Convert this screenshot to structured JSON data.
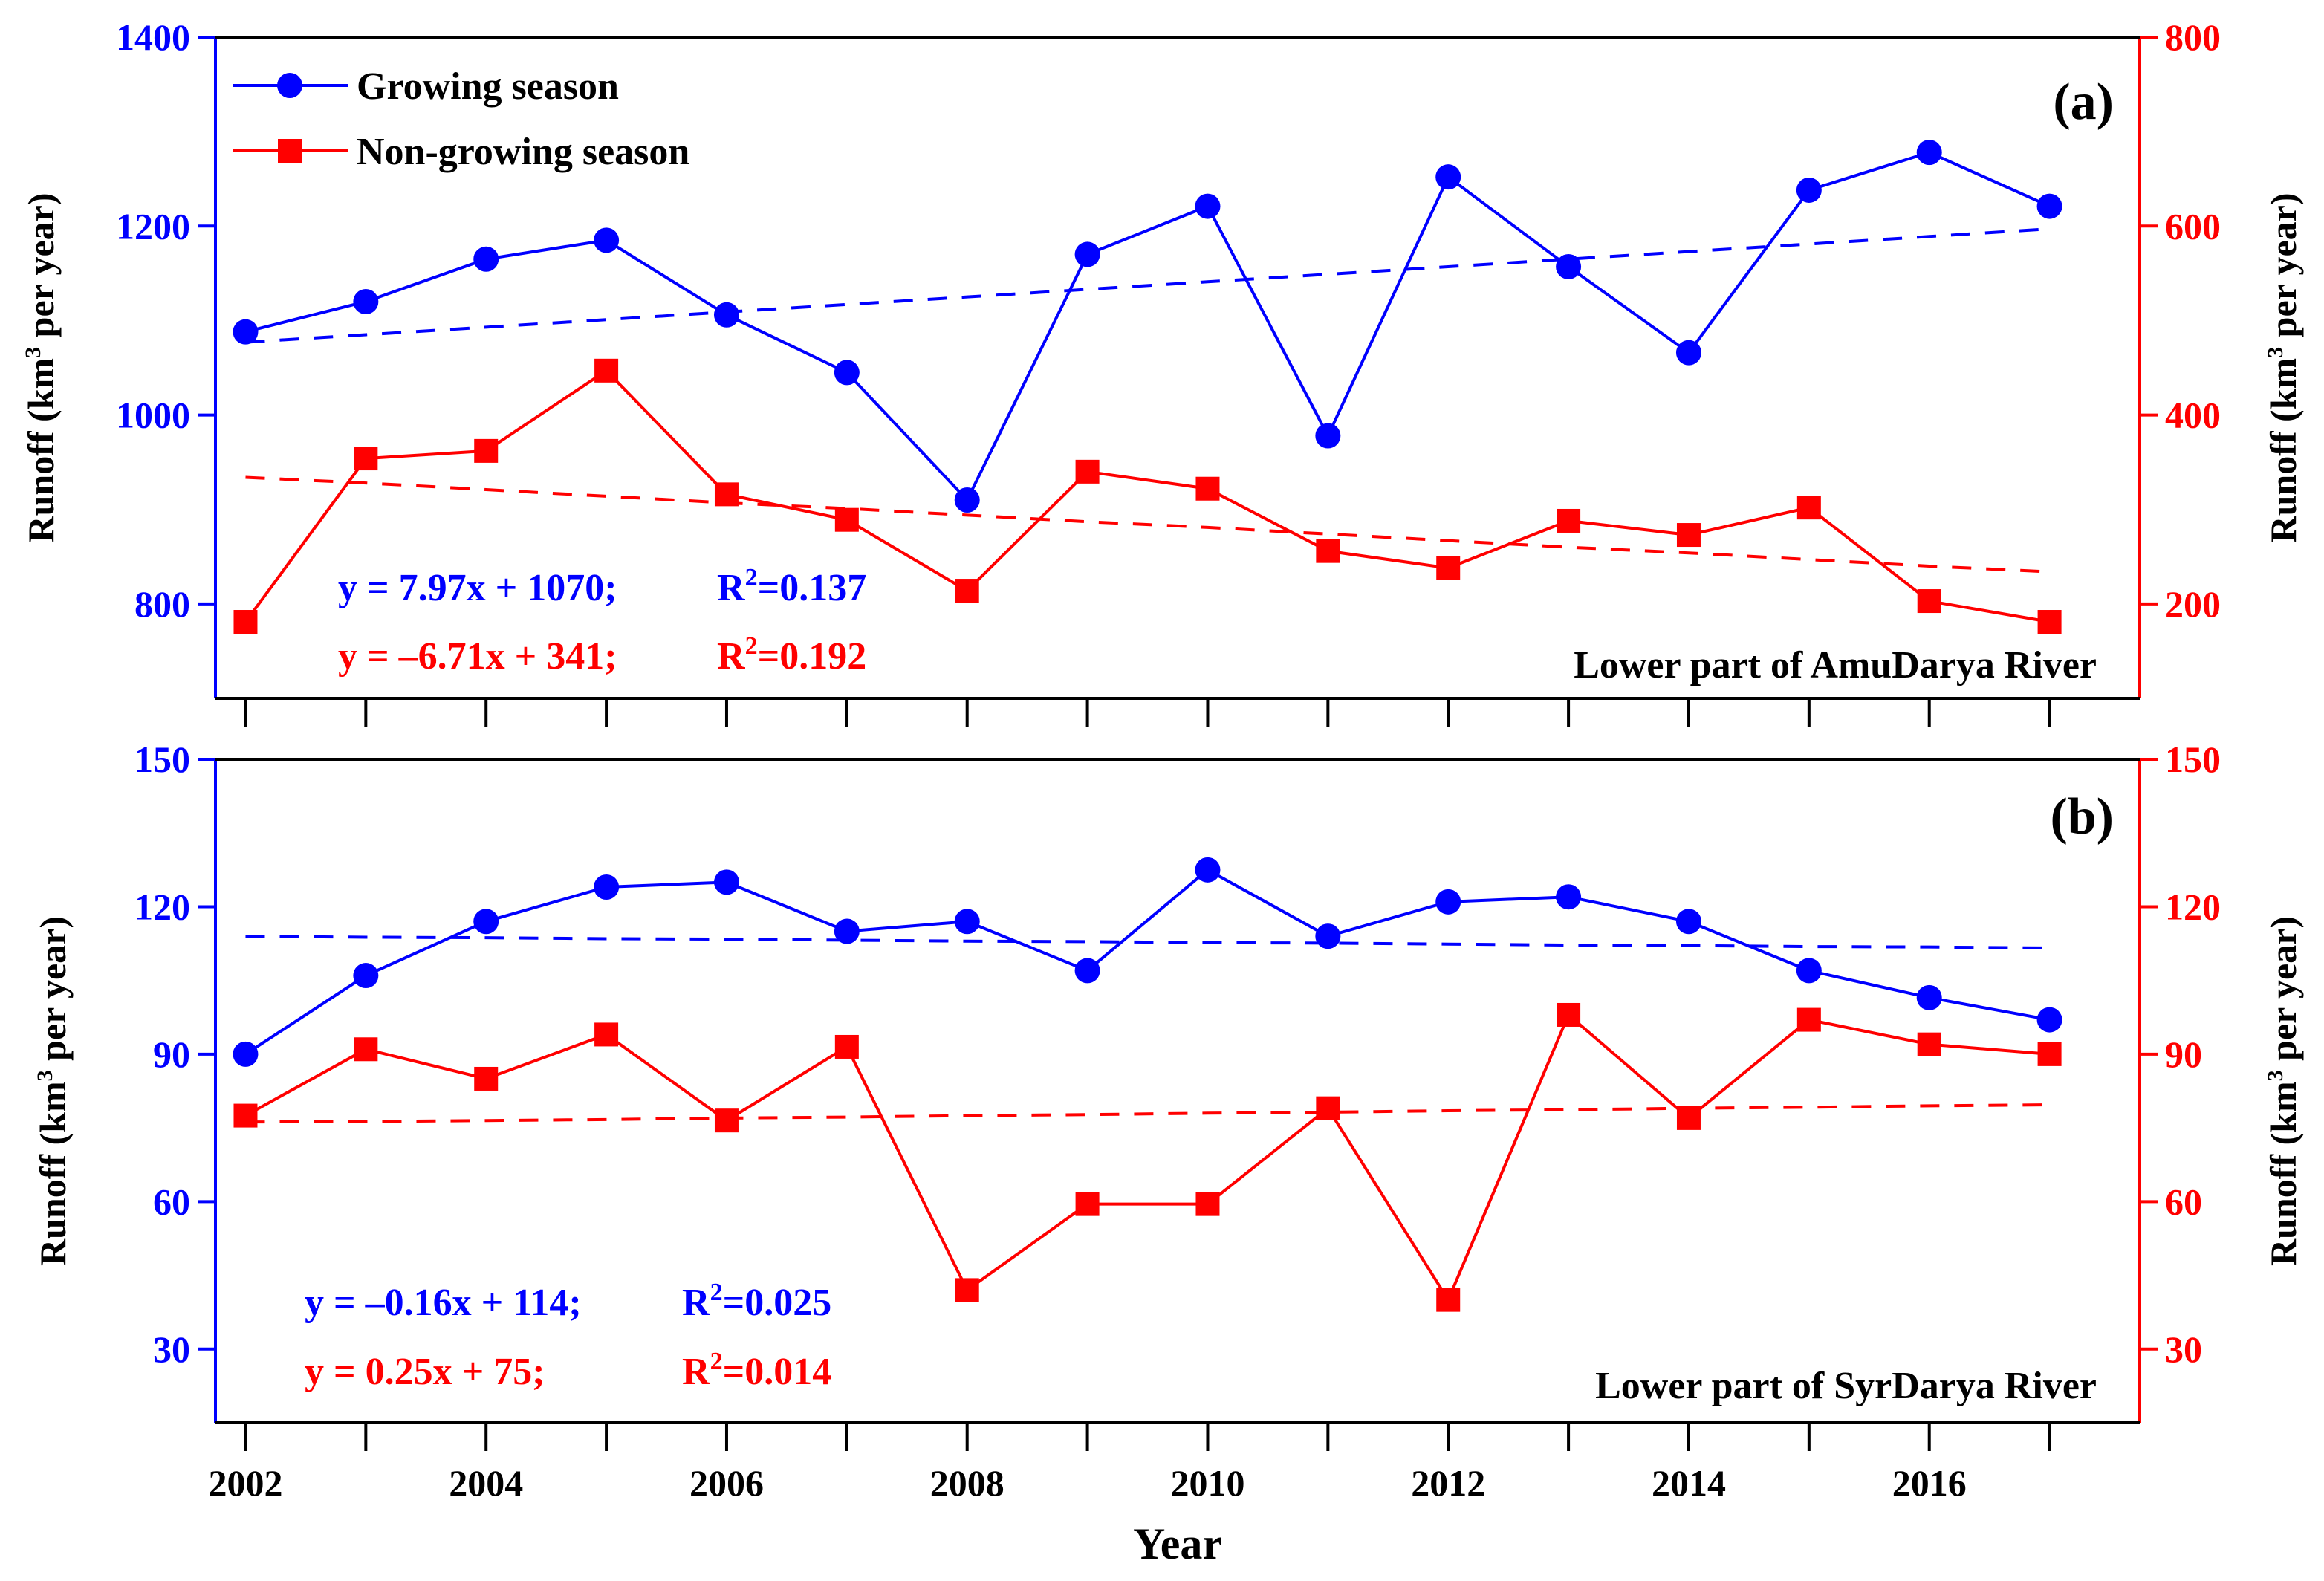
{
  "chart_data": [
    {
      "type": "line",
      "panel_label": "(a)",
      "subtitle": "Lower part of AmuDarya River",
      "x": [
        2002,
        2003,
        2004,
        2005,
        2006,
        2007,
        2008,
        2009,
        2010,
        2011,
        2012,
        2013,
        2014,
        2015,
        2016,
        2017
      ],
      "xlim": [
        2001.75,
        2017.75
      ],
      "ylabel_left": "Runoff (km3 per year)",
      "ylabel_right": "Runoff (km3 per year)",
      "ylim_left": [
        700,
        1400
      ],
      "yticks_left": [
        800,
        1000,
        1200,
        1400
      ],
      "ylim_right": [
        100,
        800
      ],
      "yticks_right": [
        200,
        400,
        600,
        800
      ],
      "series": [
        {
          "name": "Growing season",
          "axis": "left",
          "color": "#0000ff",
          "marker": "circle",
          "values": [
            1088,
            1120,
            1165,
            1185,
            1106,
            1045,
            910,
            1170,
            1221,
            978,
            1252,
            1157,
            1066,
            1238,
            1278,
            1221
          ],
          "trend": [
            1077,
            1085,
            1093,
            1101,
            1109,
            1117,
            1125,
            1133,
            1141,
            1149,
            1157,
            1165,
            1173,
            1181,
            1189,
            1197
          ],
          "equation": "y = 7.97x + 1070;",
          "r2": "R2=0.137"
        },
        {
          "name": "Non-growing season",
          "axis": "right",
          "color": "#ff0000",
          "marker": "square",
          "values": [
            181,
            354,
            362,
            447,
            316,
            289,
            214,
            340,
            322,
            256,
            238,
            288,
            273,
            302,
            203,
            181
          ],
          "trend": [
            334,
            328,
            321,
            314,
            307,
            301,
            294,
            287,
            281,
            274,
            267,
            260,
            254,
            247,
            240,
            234
          ],
          "equation": "y = –6.71x + 341;",
          "r2": "R2=0.192"
        }
      ]
    },
    {
      "type": "line",
      "panel_label": "(b)",
      "subtitle": "Lower part of SyrDarya River",
      "xlabel": "Year",
      "x": [
        2002,
        2003,
        2004,
        2005,
        2006,
        2007,
        2008,
        2009,
        2010,
        2011,
        2012,
        2013,
        2014,
        2015,
        2016,
        2017
      ],
      "xlim": [
        2001.75,
        2017.75
      ],
      "xticks": [
        2002,
        2004,
        2006,
        2008,
        2010,
        2012,
        2014,
        2016
      ],
      "ylabel_left": "Runoff (km3 per year)",
      "ylabel_right": "Runoff (km3 per year)",
      "ylim_left": [
        15,
        150
      ],
      "yticks_left": [
        30,
        60,
        90,
        120,
        150
      ],
      "ylim_right": [
        15,
        150
      ],
      "yticks_right": [
        30,
        60,
        90,
        120,
        150
      ],
      "series": [
        {
          "name": "Growing season",
          "axis": "left",
          "color": "#0000ff",
          "marker": "circle",
          "values": [
            90,
            106,
            117,
            124,
            125,
            115,
            117,
            107,
            127.5,
            114,
            121,
            122,
            117,
            107,
            101.5,
            97
          ],
          "trend": [
            114,
            113.8,
            113.7,
            113.5,
            113.4,
            113.2,
            113.0,
            112.9,
            112.7,
            112.6,
            112.4,
            112.2,
            112.1,
            111.9,
            111.8,
            111.6
          ],
          "equation": "y = –0.16x + 114;",
          "r2": "R2=0.025"
        },
        {
          "name": "Non-growing season",
          "axis": "right",
          "color": "#ff0000",
          "marker": "square",
          "values": [
            77.5,
            91,
            85,
            94,
            76.5,
            91.5,
            42,
            59.5,
            59.5,
            79,
            40,
            98,
            77,
            97,
            92,
            90
          ],
          "trend": [
            76.2,
            76.3,
            76.5,
            76.7,
            77.0,
            77.2,
            77.5,
            77.7,
            78.0,
            78.2,
            78.5,
            78.7,
            79.0,
            79.2,
            79.5,
            79.7
          ],
          "equation": "y = 0.25x + 75;",
          "r2": "R2=0.014"
        }
      ]
    }
  ]
}
